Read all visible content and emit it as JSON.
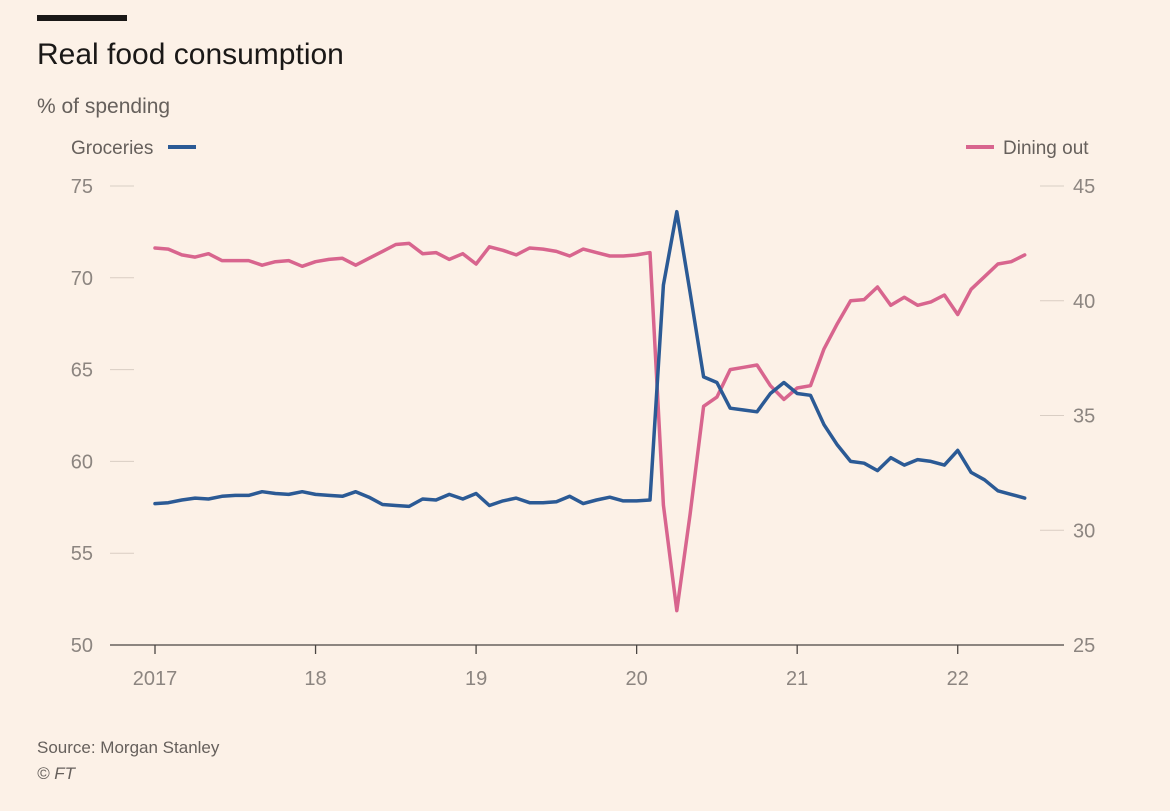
{
  "title": "Real food consumption",
  "subtitle": "% of spending",
  "source": "Source: Morgan Stanley",
  "copyright": "© FT",
  "chart_data": {
    "type": "line",
    "title": "Real food consumption",
    "ylabel": "% of spending",
    "x_tick_labels": [
      "2017",
      "18",
      "19",
      "20",
      "21",
      "22"
    ],
    "x_ticks": [
      2017,
      2018,
      2019,
      2020,
      2021,
      2022
    ],
    "xlim": [
      2017,
      2022.5
    ],
    "grid": false,
    "left_axis": {
      "ylim": [
        50,
        75
      ],
      "ticks": [
        50,
        55,
        60,
        65,
        70,
        75
      ]
    },
    "right_axis": {
      "ylim": [
        25,
        45
      ],
      "ticks": [
        25,
        30,
        35,
        40,
        45
      ]
    },
    "series": [
      {
        "name": "Groceries",
        "axis": "left",
        "color": "#2b5a95",
        "x": [
          2017.0,
          2017.083,
          2017.167,
          2017.25,
          2017.333,
          2017.417,
          2017.5,
          2017.583,
          2017.667,
          2017.75,
          2017.833,
          2017.917,
          2018.0,
          2018.083,
          2018.167,
          2018.25,
          2018.333,
          2018.417,
          2018.5,
          2018.583,
          2018.667,
          2018.75,
          2018.833,
          2018.917,
          2019.0,
          2019.083,
          2019.167,
          2019.25,
          2019.333,
          2019.417,
          2019.5,
          2019.583,
          2019.667,
          2019.75,
          2019.833,
          2019.917,
          2020.0,
          2020.083,
          2020.167,
          2020.25,
          2020.333,
          2020.417,
          2020.5,
          2020.583,
          2020.667,
          2020.75,
          2020.833,
          2020.917,
          2021.0,
          2021.083,
          2021.167,
          2021.25,
          2021.333,
          2021.417,
          2021.5,
          2021.583,
          2021.667,
          2021.75,
          2021.833,
          2021.917,
          2022.0,
          2022.083,
          2022.167,
          2022.25,
          2022.333,
          2022.417
        ],
        "values": [
          57.7,
          57.75,
          57.9,
          58.0,
          57.95,
          58.1,
          58.15,
          58.15,
          58.35,
          58.25,
          58.2,
          58.35,
          58.2,
          58.15,
          58.1,
          58.35,
          58.05,
          57.65,
          57.6,
          57.55,
          57.95,
          57.9,
          58.2,
          57.95,
          58.25,
          57.6,
          57.85,
          58.0,
          57.75,
          57.75,
          57.8,
          58.1,
          57.7,
          57.9,
          58.05,
          57.85,
          57.85,
          57.9,
          69.6,
          73.6,
          69.2,
          64.6,
          64.3,
          62.9,
          62.8,
          62.7,
          63.7,
          64.3,
          63.7,
          63.6,
          62.0,
          60.9,
          60.0,
          59.9,
          59.5,
          60.2,
          59.8,
          60.1,
          60.0,
          59.8,
          60.6,
          59.4,
          59.0,
          58.4,
          58.2,
          58.0
        ]
      },
      {
        "name": "Dining out",
        "axis": "right",
        "color": "#d8658e",
        "x": [
          2017.0,
          2017.083,
          2017.167,
          2017.25,
          2017.333,
          2017.417,
          2017.5,
          2017.583,
          2017.667,
          2017.75,
          2017.833,
          2017.917,
          2018.0,
          2018.083,
          2018.167,
          2018.25,
          2018.333,
          2018.417,
          2018.5,
          2018.583,
          2018.667,
          2018.75,
          2018.833,
          2018.917,
          2019.0,
          2019.083,
          2019.167,
          2019.25,
          2019.333,
          2019.417,
          2019.5,
          2019.583,
          2019.667,
          2019.75,
          2019.833,
          2019.917,
          2020.0,
          2020.083,
          2020.167,
          2020.25,
          2020.333,
          2020.417,
          2020.5,
          2020.583,
          2020.667,
          2020.75,
          2020.833,
          2020.917,
          2021.0,
          2021.083,
          2021.167,
          2021.25,
          2021.333,
          2021.417,
          2021.5,
          2021.583,
          2021.667,
          2021.75,
          2021.833,
          2021.917,
          2022.0,
          2022.083,
          2022.167,
          2022.25,
          2022.333,
          2022.417
        ],
        "values": [
          42.3,
          42.25,
          42.0,
          41.9,
          42.05,
          41.75,
          41.75,
          41.75,
          41.55,
          41.7,
          41.75,
          41.5,
          41.7,
          41.8,
          41.85,
          41.55,
          41.85,
          42.15,
          42.45,
          42.5,
          42.05,
          42.1,
          41.8,
          42.05,
          41.6,
          42.35,
          42.2,
          42.0,
          42.3,
          42.25,
          42.15,
          41.95,
          42.25,
          42.1,
          41.95,
          41.95,
          42.0,
          42.1,
          31.1,
          26.5,
          30.7,
          35.4,
          35.8,
          37.0,
          37.1,
          37.2,
          36.3,
          35.7,
          36.2,
          36.3,
          37.9,
          39.0,
          40.0,
          40.05,
          40.6,
          39.8,
          40.15,
          39.8,
          39.95,
          40.25,
          39.4,
          40.5,
          41.05,
          41.6,
          41.7,
          42.0
        ]
      }
    ],
    "legend": [
      {
        "label": "Groceries",
        "position": "top-left"
      },
      {
        "label": "Dining out",
        "position": "top-right"
      }
    ]
  }
}
